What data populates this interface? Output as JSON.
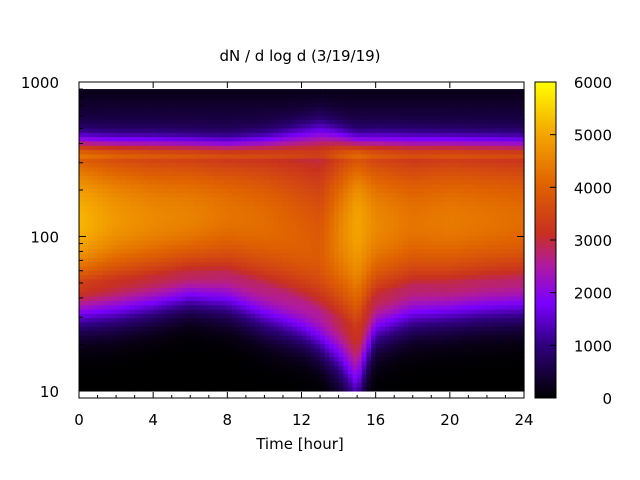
{
  "chart_data": {
    "type": "heatmap",
    "title": "dN / d log d (3/19/19)",
    "xlabel": "Time [hour]",
    "ylabel": "",
    "x_range": [
      0,
      24
    ],
    "x_ticks": [
      0,
      4,
      8,
      12,
      16,
      20,
      24
    ],
    "x_tick_labels": [
      "0",
      "4",
      "8",
      "12",
      "16",
      "20",
      "24"
    ],
    "y_scale": "log",
    "y_range": [
      9,
      1000
    ],
    "y_ticks": [
      10,
      100,
      1000
    ],
    "y_tick_labels": [
      "10",
      "100",
      "1000"
    ],
    "y_minor_ticks": [
      20,
      30,
      40,
      50,
      60,
      70,
      80,
      90,
      200,
      300,
      400,
      500,
      600,
      700,
      800,
      900
    ],
    "data_y_range": [
      10,
      900
    ],
    "colorbar": {
      "range": [
        0,
        6000
      ],
      "ticks": [
        0,
        1000,
        2000,
        3000,
        4000,
        5000,
        6000
      ],
      "tick_labels": [
        "0",
        "1000",
        "2000",
        "3000",
        "4000",
        "5000",
        "6000"
      ],
      "palette": "black-purple-red-orange-yellow"
    },
    "peak_diameter_by_hour": {
      "x": [
        0,
        2,
        4,
        6,
        8,
        10,
        12,
        13,
        14,
        15,
        16,
        18,
        20,
        22,
        24
      ],
      "y": [
        125,
        130,
        130,
        135,
        140,
        125,
        95,
        80,
        100,
        125,
        120,
        122,
        125,
        128,
        130
      ]
    },
    "peak_value_by_hour": {
      "x": [
        0,
        2,
        4,
        6,
        8,
        10,
        12,
        13,
        14,
        15,
        16,
        18,
        20,
        22,
        24
      ],
      "y": [
        5200,
        4800,
        4600,
        4500,
        4300,
        4200,
        4000,
        3900,
        4500,
        5000,
        4600,
        4300,
        4400,
        4300,
        4200
      ]
    },
    "lower_edge_by_hour": {
      "x": [
        0,
        2,
        4,
        6,
        8,
        10,
        12,
        13,
        14,
        15,
        16,
        18,
        20,
        22,
        24
      ],
      "y": [
        50,
        52,
        55,
        60,
        58,
        48,
        38,
        32,
        30,
        25,
        42,
        48,
        50,
        52,
        53
      ]
    },
    "upper_edge_diameter": 320
  }
}
